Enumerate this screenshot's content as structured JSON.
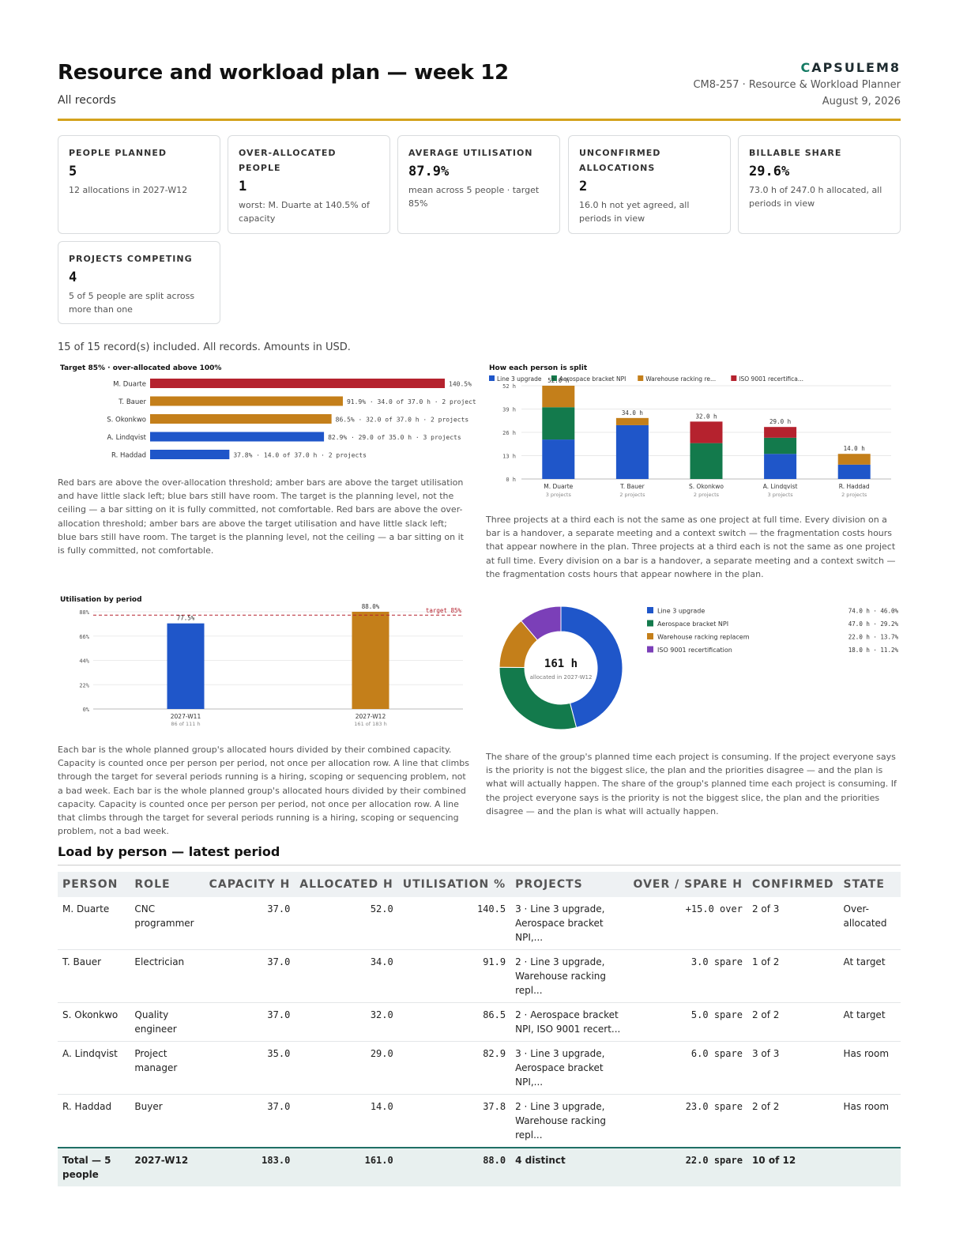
{
  "header": {
    "title": "Resource and workload plan — week 12",
    "subtitle": "All records",
    "brand_first": "C",
    "brand_rest": "APSULEM8",
    "doc_id": "CM8-257 · Resource & Workload Planner",
    "date": "August 9, 2026"
  },
  "kpis": [
    {
      "label": "PEOPLE PLANNED",
      "value": "5",
      "note": "12 allocations in 2027-W12"
    },
    {
      "label": "OVER-ALLOCATED PEOPLE",
      "value": "1",
      "note": "worst: M. Duarte at 140.5% of capacity"
    },
    {
      "label": "AVERAGE UTILISATION",
      "value": "87.9%",
      "note": "mean across 5 people · target 85%"
    },
    {
      "label": "UNCONFIRMED ALLOCATIONS",
      "value": "2",
      "note": "16.0 h not yet agreed, all periods in view"
    },
    {
      "label": "BILLABLE SHARE",
      "value": "29.6%",
      "note": "73.0 h of 247.0 h allocated, all periods in view"
    },
    {
      "label": "PROJECTS COMPETING",
      "value": "4",
      "note": "5 of 5 people are split across more than one"
    }
  ],
  "records_note": "15 of 15 record(s) included. All records. Amounts in USD.",
  "colors": {
    "red": "#b5222e",
    "amber": "#c47f1a",
    "blue": "#1f56c9",
    "green": "#137a4c",
    "purple": "#7b3fb8"
  },
  "chart_data": [
    {
      "type": "bar",
      "orientation": "horizontal",
      "title": "Target 85% · over-allocated above 100%",
      "categories": [
        "M. Duarte",
        "T. Bauer",
        "S. Okonkwo",
        "A. Lindqvist",
        "R. Haddad"
      ],
      "values": [
        140.5,
        91.9,
        86.5,
        82.9,
        37.8
      ],
      "bar_colors": [
        "red",
        "amber",
        "amber",
        "blue",
        "blue"
      ],
      "data_labels": [
        "140.5%",
        "91.9% · 34.0 of 37.0 h · 2 projects",
        "86.5% · 32.0 of 37.0 h · 2 projects",
        "82.9% · 29.0 of 35.0 h · 3 projects",
        "37.8% · 14.0 of 37.0 h · 2 projects"
      ],
      "xlim": [
        0,
        140.5
      ]
    },
    {
      "type": "bar",
      "stacked": true,
      "title": "How each person is split",
      "categories": [
        "M. Duarte",
        "T. Bauer",
        "S. Okonkwo",
        "A. Lindqvist",
        "R. Haddad"
      ],
      "sublabels": [
        "3 projects",
        "2 projects",
        "2 projects",
        "3 projects",
        "2 projects"
      ],
      "series": [
        {
          "name": "Line 3 upgrade",
          "color": "blue",
          "values": [
            22,
            30,
            0,
            14,
            8
          ]
        },
        {
          "name": "Aerospace bracket NPI",
          "color": "green",
          "values": [
            18,
            0,
            20,
            9,
            0
          ]
        },
        {
          "name": "Warehouse racking re...",
          "color": "amber",
          "values": [
            12,
            4,
            0,
            0,
            6
          ]
        },
        {
          "name": "ISO 9001 recertifica...",
          "color": "red",
          "values": [
            0,
            0,
            12,
            6,
            0
          ]
        }
      ],
      "totals": [
        "52.0 h",
        "34.0 h",
        "32.0 h",
        "29.0 h",
        "14.0 h"
      ],
      "y_ticks": [
        "0 h",
        "13 h",
        "26 h",
        "39 h",
        "52 h"
      ],
      "ylim": [
        0,
        52
      ],
      "legend": "top"
    },
    {
      "type": "bar",
      "title": "Utilisation by period",
      "categories": [
        "2027-W11",
        "2027-W12"
      ],
      "sublabels": [
        "86 of 111 h",
        "161 of 183 h"
      ],
      "values": [
        77.5,
        88.0
      ],
      "data_labels": [
        "77.5%",
        "88.0%"
      ],
      "bar_colors": [
        "blue",
        "amber"
      ],
      "y_ticks": [
        "0%",
        "22%",
        "44%",
        "66%",
        "88%"
      ],
      "ylim": [
        0,
        88
      ],
      "target": 85,
      "target_label": "target 85%"
    },
    {
      "type": "pie",
      "donut": true,
      "center_value": "161 h",
      "center_label": "allocated in 2027-W12",
      "slices": [
        {
          "name": "Line 3 upgrade",
          "color": "blue",
          "value": 74.0,
          "label": "74.0 h · 46.0%"
        },
        {
          "name": "Aerospace bracket NPI",
          "color": "green",
          "value": 47.0,
          "label": "47.0 h · 29.2%"
        },
        {
          "name": "Warehouse racking replacem",
          "color": "amber",
          "value": 22.0,
          "label": "22.0 h · 13.7%"
        },
        {
          "name": "ISO 9001 recertification",
          "color": "purple",
          "value": 18.0,
          "label": "18.0 h · 11.2%"
        }
      ],
      "legend": "right"
    }
  ],
  "paragraphs": {
    "p1": "Red bars are above the over-allocation threshold; amber bars are above the target utilisation and have little slack left; blue bars still have room. The target is the planning level, not the ceiling — a bar sitting on it is fully committed, not comfortable. Red bars are above the over-allocation threshold; amber bars are above the target utilisation and have little slack left; blue bars still have room. The target is the planning level, not the ceiling — a bar sitting on it is fully committed, not comfortable.",
    "p2": "Three projects at a third each is not the same as one project at full time. Every division on a bar is a handover, a separate meeting and a context switch — the fragmentation costs hours that appear nowhere in the plan. Three projects at a third each is not the same as one project at full time. Every division on a bar is a handover, a separate meeting and a context switch — the fragmentation costs hours that appear nowhere in the plan.",
    "p3": "Each bar is the whole planned group's allocated hours divided by their combined capacity. Capacity is counted once per person per period, not once per allocation row. A line that climbs through the target for several periods running is a hiring, scoping or sequencing problem, not a bad week. Each bar is the whole planned group's allocated hours divided by their combined capacity. Capacity is counted once per person per period, not once per allocation row. A line that climbs through the target for several periods running is a hiring, scoping or sequencing problem, not a bad week.",
    "p4": "The share of the group's planned time each project is consuming. If the project everyone says is the priority is not the biggest slice, the plan and the priorities disagree — and the plan is what will actually happen. The share of the group's planned time each project is consuming. If the project everyone says is the priority is not the biggest slice, the plan and the priorities disagree — and the plan is what will actually happen."
  },
  "table": {
    "title": "Load by person — latest period",
    "headers": [
      "PERSON",
      "ROLE",
      "CAPACITY H",
      "ALLOCATED H",
      "UTILISATION %",
      "PROJECTS",
      "OVER / SPARE H",
      "CONFIRMED",
      "STATE"
    ],
    "rows": [
      {
        "person": "M. Duarte",
        "role": "CNC programmer",
        "capacity": "37.0",
        "allocated": "52.0",
        "util": "140.5",
        "projects": "3 · Line 3 upgrade, Aerospace bracket NPI,...",
        "over": "+15.0 over",
        "confirmed": "2 of 3",
        "state": "Over-allocated"
      },
      {
        "person": "T. Bauer",
        "role": "Electrician",
        "capacity": "37.0",
        "allocated": "34.0",
        "util": "91.9",
        "projects": "2 · Line 3 upgrade, Warehouse racking repl...",
        "over": "3.0 spare",
        "confirmed": "1 of 2",
        "state": "At target"
      },
      {
        "person": "S. Okonkwo",
        "role": "Quality engineer",
        "capacity": "37.0",
        "allocated": "32.0",
        "util": "86.5",
        "projects": "2 · Aerospace bracket NPI, ISO 9001 recert...",
        "over": "5.0 spare",
        "confirmed": "2 of 2",
        "state": "At target"
      },
      {
        "person": "A. Lindqvist",
        "role": "Project manager",
        "capacity": "35.0",
        "allocated": "29.0",
        "util": "82.9",
        "projects": "3 · Line 3 upgrade, Aerospace bracket NPI,...",
        "over": "6.0 spare",
        "confirmed": "3 of 3",
        "state": "Has room"
      },
      {
        "person": "R. Haddad",
        "role": "Buyer",
        "capacity": "37.0",
        "allocated": "14.0",
        "util": "37.8",
        "projects": "2 · Line 3 upgrade, Warehouse racking repl...",
        "over": "23.0 spare",
        "confirmed": "2 of 2",
        "state": "Has room"
      }
    ],
    "total": {
      "person": "Total — 5 people",
      "role": "2027-W12",
      "capacity": "183.0",
      "allocated": "161.0",
      "util": "88.0",
      "projects": "4 distinct",
      "over": "22.0 spare",
      "confirmed": "10 of 12",
      "state": ""
    }
  }
}
